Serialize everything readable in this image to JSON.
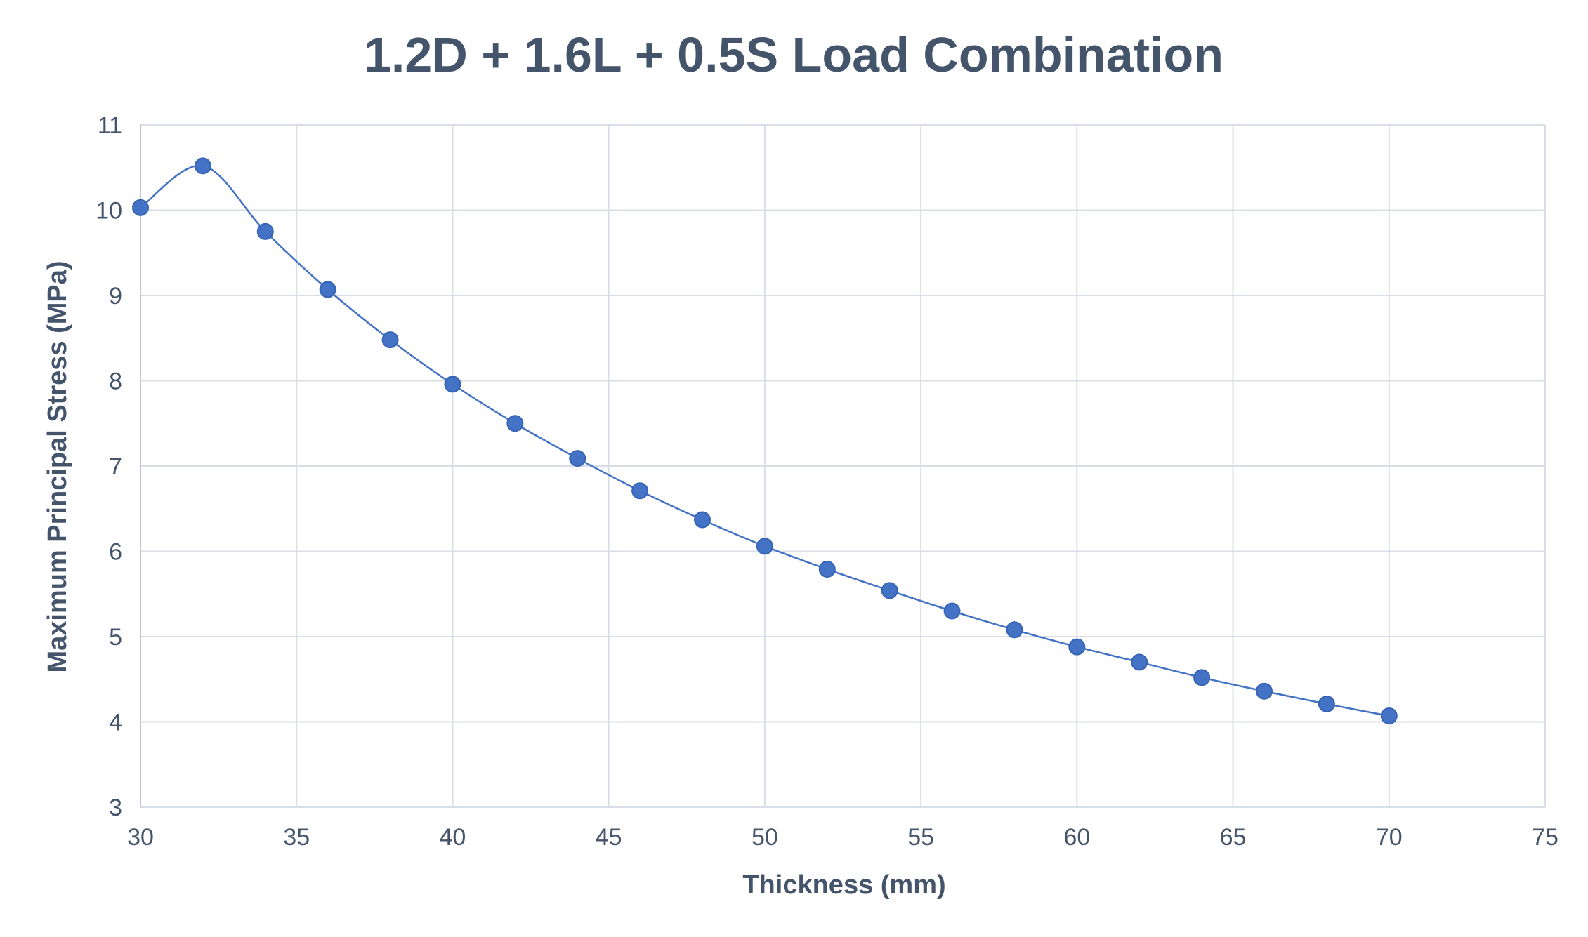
{
  "chart_data": {
    "type": "scatter",
    "title": "1.2D + 1.6L + 0.5S Load Combination",
    "xlabel": "Thickness (mm)",
    "ylabel": "Maximum Principal Stress (MPa)",
    "xlim": [
      30,
      75
    ],
    "ylim": [
      3,
      11
    ],
    "x_ticks": [
      "30",
      "35",
      "40",
      "45",
      "50",
      "55",
      "60",
      "65",
      "70",
      "75"
    ],
    "y_ticks": [
      "3",
      "4",
      "5",
      "6",
      "7",
      "8",
      "9",
      "10",
      "11"
    ],
    "grid": true,
    "smoothed_line": true,
    "colors": {
      "series": "#4472c4",
      "text": "#44546a",
      "grid": "#d9dee6"
    },
    "series": [
      {
        "x": [
          30,
          32,
          34,
          36,
          38,
          40,
          42,
          44,
          46,
          48,
          50,
          52,
          54,
          56,
          58,
          60,
          62,
          64,
          66,
          68,
          70
        ],
        "y": [
          10.03,
          10.52,
          9.75,
          9.07,
          8.48,
          7.96,
          7.5,
          7.09,
          6.71,
          6.37,
          6.06,
          5.79,
          5.54,
          5.3,
          5.08,
          4.88,
          4.7,
          4.52,
          4.36,
          4.21,
          4.07
        ]
      }
    ]
  }
}
